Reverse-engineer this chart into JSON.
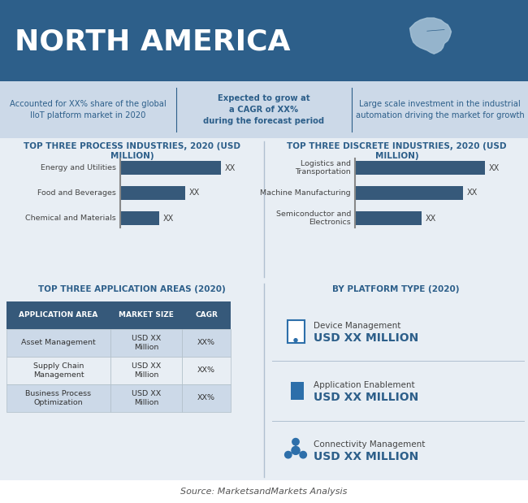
{
  "title": "NORTH AMERICA",
  "title_bg": "#2d5f8a",
  "title_color": "#ffffff",
  "info_bg": "#ccd9e8",
  "info_texts": [
    "Accounted for XX% share of the global\nIIoT platform market in 2020",
    "Expected to grow at\na CAGR of XX%\nduring the forecast period",
    "Large scale investment in the industrial\nautomation driving the market for growth"
  ],
  "bar_section_bg": "#e8eef4",
  "section_title_color": "#2d5f8a",
  "bar_color": "#36597a",
  "process_title": "TOP THREE PROCESS INDUSTRIES, 2020 (USD\nMILLION)",
  "process_labels": [
    "Energy and Utilities",
    "Food and Beverages",
    "Chemical and Materials"
  ],
  "process_values": [
    78,
    50,
    30
  ],
  "discrete_title": "TOP THREE DISCRETE INDUSTRIES, 2020 (USD\nMILLION)",
  "discrete_labels": [
    "Logistics and\nTransportation",
    "Machine Manufacturing",
    "Semiconductor and\nElectronics"
  ],
  "discrete_values": [
    82,
    68,
    42
  ],
  "app_title": "TOP THREE APPLICATION AREAS (2020)",
  "app_headers": [
    "APPLICATION AREA",
    "MARKET SIZE",
    "CAGR"
  ],
  "app_rows": [
    [
      "Asset Management",
      "USD XX\nMillion",
      "XX%"
    ],
    [
      "Supply Chain\nManagement",
      "USD XX\nMillion",
      "XX%"
    ],
    [
      "Business Process\nOptimization",
      "USD XX\nMillion",
      "XX%"
    ]
  ],
  "platform_title": "BY PLATFORM TYPE (2020)",
  "platform_items": [
    [
      "Device Management",
      "USD XX MILLION"
    ],
    [
      "Application Enablement",
      "USD XX MILLION"
    ],
    [
      "Connectivity Management",
      "USD XX MILLION"
    ]
  ],
  "source_text": "Source: MarketsandMarkets Analysis",
  "table_header_bg": "#36597a",
  "table_header_color": "#ffffff",
  "table_row_bg1": "#ccd9e8",
  "table_row_bg2": "#e8eef4",
  "icon_color": "#2d6faa"
}
